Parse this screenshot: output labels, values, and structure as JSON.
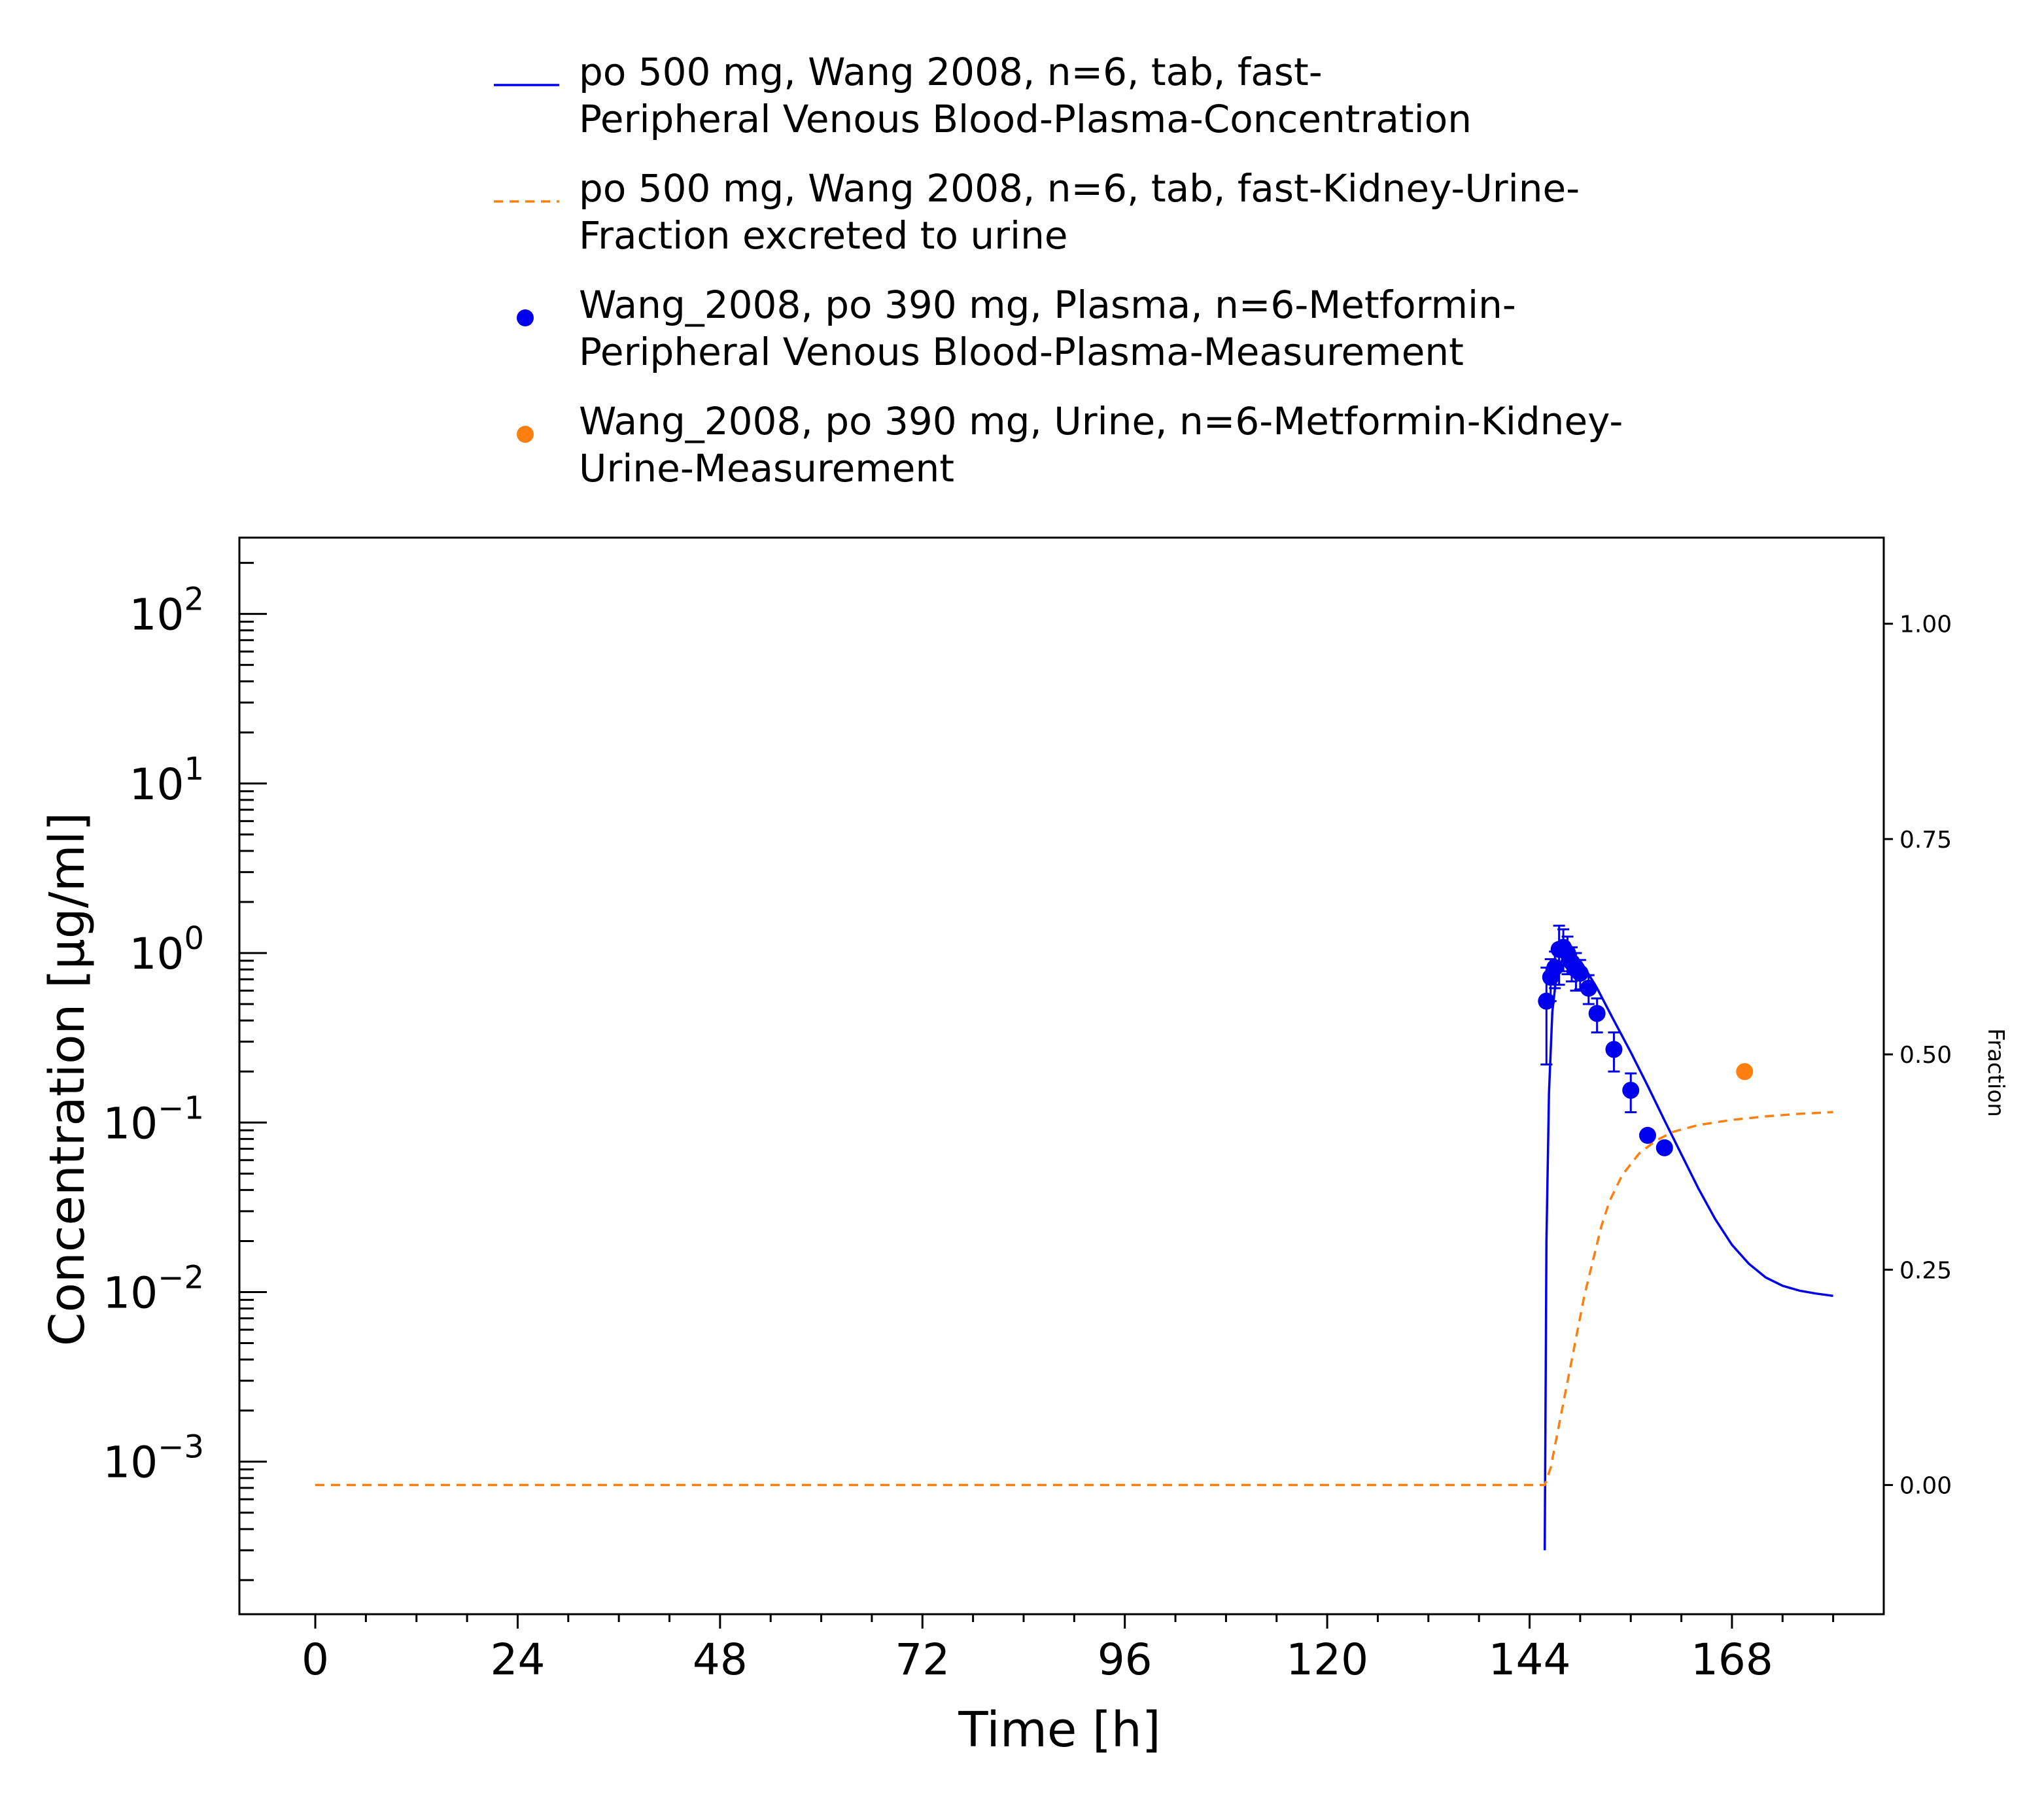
{
  "chart_data": {
    "type": "line",
    "title": "",
    "xlabel": "Time [h]",
    "ylabel": "Concentration [µg/ml]",
    "y2label": "Fraction",
    "xlim": [
      -9,
      186
    ],
    "ylim_log10": [
      -3.9,
      2.45
    ],
    "y2lim": [
      -0.15,
      1.1
    ],
    "yscale": "log",
    "x_ticks": [
      "0",
      "24",
      "48",
      "72",
      "96",
      "120",
      "144",
      "168"
    ],
    "y_ticks": [
      {
        "base": "10",
        "exp": "2",
        "value": 100
      },
      {
        "base": "10",
        "exp": "1",
        "value": 10
      },
      {
        "base": "10",
        "exp": "0",
        "value": 1
      },
      {
        "base": "10",
        "exp": "−1",
        "value": 0.1
      },
      {
        "base": "10",
        "exp": "−2",
        "value": 0.01
      },
      {
        "base": "10",
        "exp": "−3",
        "value": 0.001
      }
    ],
    "y2_ticks": [
      "0.00",
      "0.25",
      "0.50",
      "0.75",
      "1.00"
    ],
    "grid": false,
    "legend_position": "top-center",
    "series": [
      {
        "name": "po 500 mg, Wang 2008, n=6, tab, fast-Peripheral Venous Blood-Plasma-Concentration",
        "legend_lines": [
          "po 500 mg, Wang 2008, n=6, tab, fast-",
          "Peripheral Venous Blood-Plasma-Concentration"
        ],
        "axis": "left",
        "style": "solid",
        "color": "#0000ee",
        "x": [
          145.8,
          146.0,
          146.3,
          146.7,
          147.2,
          148.0,
          149.0,
          150.0,
          151.0,
          152.0,
          154.0,
          156.0,
          158.0,
          160.0,
          162.0,
          164.0,
          166.0,
          168.0,
          170.0,
          172.0,
          174.0,
          176.0,
          178.0,
          180.0
        ],
        "y": [
          0.0003,
          0.02,
          0.15,
          0.45,
          0.75,
          0.95,
          0.98,
          0.9,
          0.75,
          0.62,
          0.4,
          0.26,
          0.165,
          0.103,
          0.065,
          0.041,
          0.027,
          0.019,
          0.0147,
          0.0122,
          0.0109,
          0.0102,
          0.0098,
          0.0095
        ]
      },
      {
        "name": "po 500 mg, Wang 2008, n=6, tab, fast-Kidney-Urine-Fraction excreted to urine",
        "legend_lines": [
          "po 500 mg, Wang 2008, n=6, tab, fast-Kidney-Urine-",
          "Fraction excreted to urine"
        ],
        "axis": "right",
        "style": "dashed",
        "color": "#ff7f0e",
        "x": [
          0,
          145.8,
          146.5,
          147.5,
          148.5,
          149.5,
          150.5,
          151.5,
          152.5,
          153.5,
          155.0,
          157.0,
          159.0,
          161.0,
          164.0,
          168.0,
          172.0,
          176.0,
          180.0
        ],
        "y": [
          0.0,
          0.0,
          0.02,
          0.07,
          0.12,
          0.17,
          0.22,
          0.26,
          0.3,
          0.33,
          0.36,
          0.385,
          0.4,
          0.41,
          0.418,
          0.424,
          0.428,
          0.431,
          0.433
        ]
      },
      {
        "name": "Wang_2008, po 390 mg, Plasma, n=6-Metformin-Peripheral Venous Blood-Plasma-Measurement",
        "legend_lines": [
          "Wang_2008, po 390 mg, Plasma, n=6-Metformin-",
          "Peripheral Venous Blood-Plasma-Measurement"
        ],
        "axis": "left",
        "style": "markers",
        "color": "#0000ee",
        "x": [
          146.0,
          146.5,
          147.0,
          147.5,
          148.0,
          148.5,
          149.0,
          149.5,
          150.0,
          151.0,
          152.0,
          154.0,
          156.0,
          158.0,
          160.0
        ],
        "y": [
          0.52,
          0.72,
          0.82,
          1.05,
          1.08,
          1.0,
          0.88,
          0.8,
          0.76,
          0.62,
          0.44,
          0.27,
          0.155,
          0.084,
          0.071
        ],
        "err": [
          0.3,
          0.2,
          0.2,
          0.4,
          0.3,
          0.25,
          0.2,
          0.2,
          0.15,
          0.12,
          0.1,
          0.07,
          0.04,
          0.0,
          0.0
        ]
      },
      {
        "name": "Wang_2008, po 390 mg, Urine, n=6-Metformin-Kidney-Urine-Measurement",
        "legend_lines": [
          "Wang_2008, po 390 mg, Urine, n=6-Metformin-Kidney-",
          "Urine-Measurement"
        ],
        "axis": "right",
        "style": "markers",
        "color": "#ff7f0e",
        "x": [
          169.5
        ],
        "y": [
          0.48
        ]
      }
    ]
  }
}
